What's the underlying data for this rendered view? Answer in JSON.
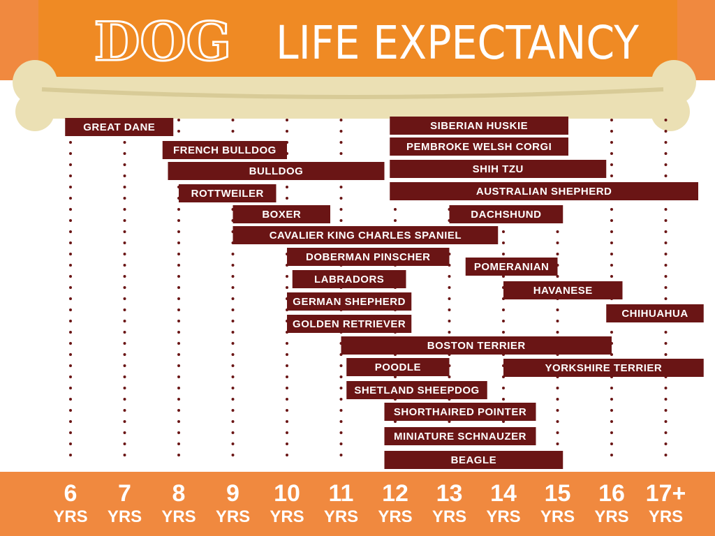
{
  "chart_data": {
    "type": "range",
    "title": {
      "emphasis": "DOG",
      "rest": "LIFE EXPECTANCY"
    },
    "color": "#6a1515",
    "xlim": [
      5,
      18
    ],
    "xticks": [
      {
        "value": 6,
        "label": "6 YRS"
      },
      {
        "value": 7,
        "label": "7 YRS"
      },
      {
        "value": 8,
        "label": "8 YRS"
      },
      {
        "value": 9,
        "label": "9 YRS"
      },
      {
        "value": 10,
        "label": "10 YRS"
      },
      {
        "value": 11,
        "label": "11 YRS"
      },
      {
        "value": 12,
        "label": "12 YRS"
      },
      {
        "value": 13,
        "label": "13 YRS"
      },
      {
        "value": 14,
        "label": "14 YRS"
      },
      {
        "value": 15,
        "label": "15 YRS"
      },
      {
        "value": 16,
        "label": "16 YRS"
      },
      {
        "value": 17,
        "label": "17+ YRS"
      }
    ],
    "categories": [
      "GREAT DANE",
      "SIBERIAN HUSKIE",
      "PEMBROKE WELSH CORGI",
      "FRENCH BULLDOG",
      "SHIH TZU",
      "BULLDOG",
      "AUSTRALIAN SHEPHERD",
      "ROTTWEILER",
      "BOXER",
      "DACHSHUND",
      "CAVALIER KING CHARLES SPANIEL",
      "DOBERMAN PINSCHER",
      "POMERANIAN",
      "LABRADORS",
      "HAVANESE",
      "GERMAN SHEPHERD",
      "CHIHUAHUA",
      "GOLDEN RETRIEVER",
      "BOSTON TERRIER",
      "POODLE",
      "YORKSHIRE TERRIER",
      "SHETLAND SHEEPDOG",
      "SHORTHAIRED POINTER",
      "MINIATURE SCHNAUZER",
      "BEAGLE"
    ],
    "low": [
      5.9,
      11.9,
      11.9,
      7.7,
      11.9,
      7.8,
      11.9,
      8.0,
      9.0,
      13.0,
      9.0,
      10.0,
      13.3,
      10.1,
      14.0,
      10.0,
      15.9,
      10.0,
      11.0,
      11.1,
      14.0,
      11.1,
      11.8,
      11.8,
      11.8
    ],
    "high": [
      7.9,
      15.2,
      15.2,
      10.0,
      15.9,
      11.8,
      17.6,
      9.8,
      10.8,
      15.1,
      13.9,
      13.0,
      15.0,
      12.2,
      16.2,
      12.3,
      17.7,
      12.3,
      16.0,
      13.0,
      17.7,
      13.7,
      14.6,
      14.6,
      15.1
    ]
  }
}
